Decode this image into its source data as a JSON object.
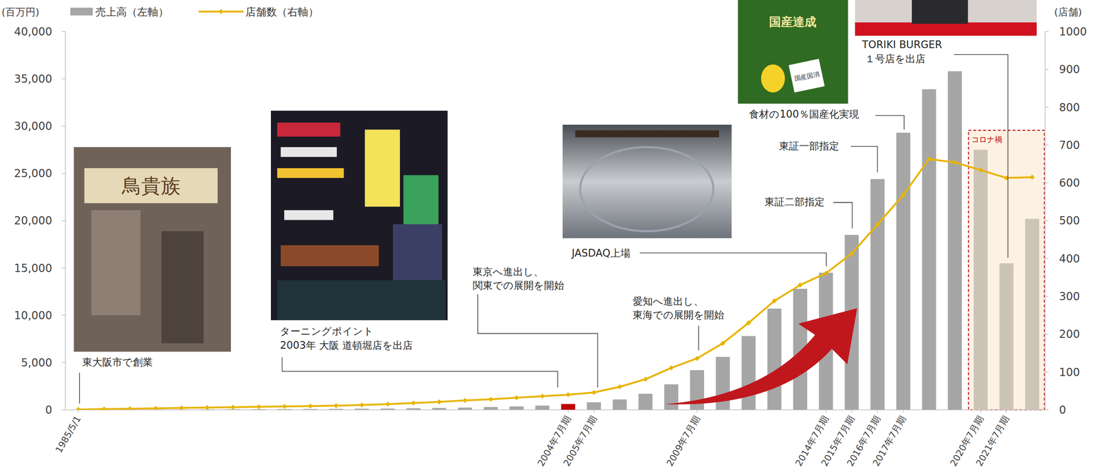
{
  "chart_data": {
    "type": "bar",
    "y_label": "(百万円)",
    "y2_label": "(店舗)",
    "legend": "top-left",
    "grid": false,
    "categories": [
      "1985/5/1",
      null,
      null,
      null,
      null,
      null,
      null,
      null,
      null,
      null,
      null,
      null,
      null,
      null,
      null,
      null,
      null,
      null,
      null,
      "2004年7月期",
      "2005年7月期",
      null,
      null,
      null,
      "2009年7月期",
      null,
      null,
      null,
      null,
      "2014年7月期",
      "2015年7月期",
      "2016年7月期",
      "2017年7月期",
      null,
      null,
      "2020年7月期",
      "2021年7月期",
      null
    ],
    "series": [
      {
        "name": "売上高（左軸）",
        "type": "bar",
        "color": "#a6a6a6",
        "colors": [
          "#a6a6a6",
          "#a6a6a6",
          "#a6a6a6",
          "#a6a6a6",
          "#a6a6a6",
          "#a6a6a6",
          "#a6a6a6",
          "#a6a6a6",
          "#a6a6a6",
          "#a6a6a6",
          "#a6a6a6",
          "#a6a6a6",
          "#a6a6a6",
          "#a6a6a6",
          "#a6a6a6",
          "#a6a6a6",
          "#a6a6a6",
          "#a6a6a6",
          "#a6a6a6",
          "#c00000",
          "#a6a6a6",
          "#a6a6a6",
          "#a6a6a6",
          "#a6a6a6",
          "#a6a6a6",
          "#a6a6a6",
          "#a6a6a6",
          "#a6a6a6",
          "#a6a6a6",
          "#a6a6a6",
          "#a6a6a6",
          "#a6a6a6",
          "#a6a6a6",
          "#a6a6a6",
          "#a6a6a6",
          "#cdc4b8",
          "#cdc4b8",
          "#cdc4b8"
        ],
        "values": [
          0,
          10,
          20,
          30,
          40,
          50,
          60,
          70,
          80,
          90,
          100,
          120,
          140,
          170,
          200,
          240,
          300,
          360,
          450,
          620,
          800,
          1100,
          1700,
          2700,
          4200,
          5600,
          7800,
          10700,
          12800,
          14500,
          18500,
          24400,
          29300,
          33900,
          35800,
          27500,
          15500,
          20200
        ]
      },
      {
        "name": "店舗数（右軸）",
        "type": "line",
        "axis": "y2",
        "color": "#e8b400",
        "marker": "diamond",
        "values": [
          1,
          2,
          3,
          4,
          5,
          6,
          7,
          8,
          9,
          10,
          11,
          13,
          15,
          18,
          21,
          25,
          28,
          32,
          36,
          40,
          46,
          61,
          81,
          111,
          136,
          176,
          230,
          288,
          330,
          361,
          413,
          490,
          568,
          663,
          654,
          634,
          613,
          615
        ]
      }
    ],
    "ylim": [
      0,
      40000
    ],
    "yticks": [
      0,
      {
        "value": 5000,
        "label": "5,000"
      },
      {
        "value": 10000,
        "label": "10,000"
      },
      {
        "value": 15000,
        "label": "15,000"
      },
      {
        "value": 20000,
        "label": "20,000"
      },
      {
        "value": 25000,
        "label": "25,000"
      },
      {
        "value": 30000,
        "label": "30,000"
      },
      {
        "value": 35000,
        "label": "35,000"
      },
      {
        "value": 40000,
        "label": "40,000"
      }
    ],
    "y2lim": [
      0,
      1000
    ],
    "y2ticks": [
      0,
      100,
      200,
      300,
      400,
      500,
      600,
      700,
      800,
      900,
      1000
    ],
    "annotations": [
      [
        "東大阪市で創業"
      ],
      [
        "ターニングポイント",
        "2003年 大阪 道頓堀店を出店"
      ],
      [
        "東京へ進出し、",
        "関東での展開を開始"
      ],
      [
        "愛知へ進出し、",
        "東海での展開を開始"
      ],
      [
        "JASDAQ上場"
      ],
      [
        "東証二部指定"
      ],
      [
        "東証一部指定"
      ],
      [
        "食材の100％国産化実現"
      ],
      [
        "TORIKI BURGER",
        "１号店を出店"
      ]
    ],
    "highlight_label": "コロナ禍",
    "photo_labels": [
      "鳥貴族",
      "国産達成",
      "国産国消"
    ]
  }
}
